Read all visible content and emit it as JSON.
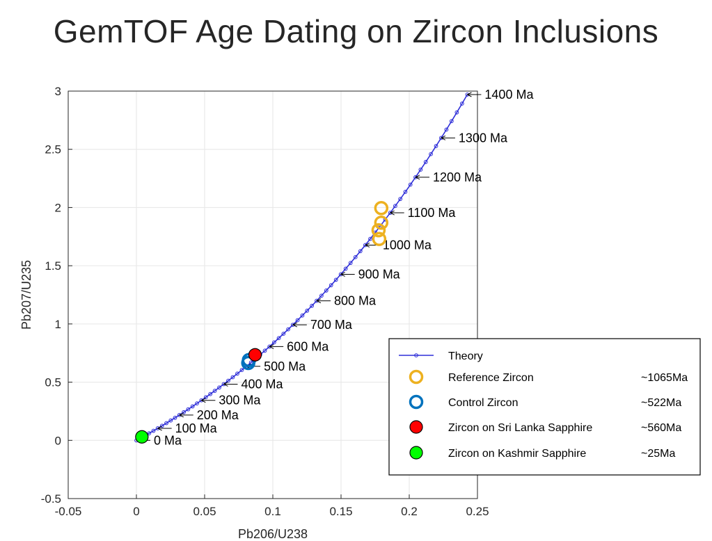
{
  "chart_data": {
    "type": "line",
    "title": "GemTOF Age Dating on Zircon Inclusions",
    "xlabel": "Pb206/U238",
    "ylabel": "Pb207/U235",
    "xlim": [
      -0.05,
      0.25
    ],
    "ylim": [
      -0.5,
      3
    ],
    "xticks": [
      -0.05,
      0,
      0.05,
      0.1,
      0.15,
      0.2,
      0.25
    ],
    "xtick_labels": [
      "-0.05",
      "0",
      "0.05",
      "0.1",
      "0.15",
      "0.2",
      "0.25"
    ],
    "yticks": [
      -0.5,
      0,
      0.5,
      1,
      1.5,
      2,
      2.5,
      3
    ],
    "ytick_labels": [
      "-0.5",
      "0",
      "0.5",
      "1",
      "1.5",
      "2",
      "2.5",
      "3"
    ],
    "grid": true,
    "legend_position": "bottom-right",
    "theory": {
      "name": "Theory",
      "age_start_ma": 0,
      "age_end_ma": 1400,
      "age_step_ma": 20,
      "decay_238_per_ma": 0.000155125,
      "decay_235_per_ma": 0.00098485,
      "color": "#2f2fd8"
    },
    "age_labels": [
      {
        "age": 0,
        "label": "0 Ma"
      },
      {
        "age": 100,
        "label": "100 Ma"
      },
      {
        "age": 200,
        "label": "200 Ma"
      },
      {
        "age": 300,
        "label": "300 Ma"
      },
      {
        "age": 400,
        "label": "400 Ma"
      },
      {
        "age": 500,
        "label": "500 Ma"
      },
      {
        "age": 600,
        "label": "600 Ma"
      },
      {
        "age": 700,
        "label": "700 Ma"
      },
      {
        "age": 800,
        "label": "800 Ma"
      },
      {
        "age": 900,
        "label": "900 Ma"
      },
      {
        "age": 1000,
        "label": "1000 Ma"
      },
      {
        "age": 1100,
        "label": "1100 Ma"
      },
      {
        "age": 1200,
        "label": "1200 Ma"
      },
      {
        "age": 1300,
        "label": "1300 Ma"
      },
      {
        "age": 1400,
        "label": "1400 Ma"
      }
    ],
    "series": [
      {
        "name": "Reference Zircon",
        "age": "~1065Ma",
        "marker": "ring",
        "color": "#edb120",
        "points": [
          {
            "x": 0.1795,
            "y": 1.995
          },
          {
            "x": 0.1795,
            "y": 1.87
          },
          {
            "x": 0.1775,
            "y": 1.805
          },
          {
            "x": 0.178,
            "y": 1.73
          }
        ]
      },
      {
        "name": "Control Zircon",
        "age": "~522Ma",
        "marker": "ring",
        "color": "#0072bd",
        "points": [
          {
            "x": 0.0825,
            "y": 0.69
          },
          {
            "x": 0.082,
            "y": 0.665
          }
        ]
      },
      {
        "name": "Zircon on Sri Lanka Sapphire",
        "age": "~560Ma",
        "marker": "dot",
        "color": "#ff0000",
        "points": [
          {
            "x": 0.087,
            "y": 0.735
          }
        ]
      },
      {
        "name": "Zircon on Kashmir Sapphire",
        "age": "~25Ma",
        "marker": "dot",
        "color": "#00ff00",
        "points": [
          {
            "x": 0.004,
            "y": 0.03
          }
        ]
      }
    ]
  }
}
